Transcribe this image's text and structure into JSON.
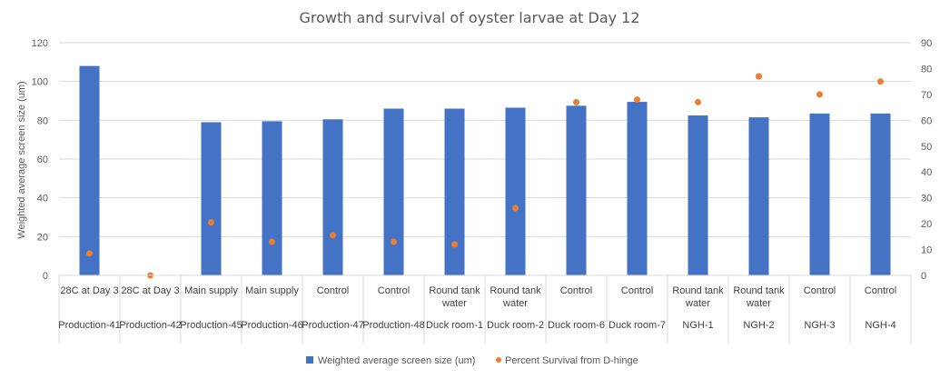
{
  "chart_data": {
    "type": "bar",
    "title": "Growth and survival of oyster larvae at Day 12",
    "ylabel": "Weighted average screen size (um)",
    "y2label": "",
    "ylim": [
      0,
      120
    ],
    "yticks": [
      0,
      20,
      40,
      60,
      80,
      100,
      120
    ],
    "y2lim": [
      0,
      90
    ],
    "y2ticks": [
      0,
      10,
      20,
      30,
      40,
      50,
      60,
      70,
      80,
      90
    ],
    "grid": true,
    "legend_position": "bottom",
    "categories": [
      {
        "top": [
          "28C at Day 3"
        ],
        "bottom": "Production-41"
      },
      {
        "top": [
          "28C at Day 3"
        ],
        "bottom": "Production-42"
      },
      {
        "top": [
          "Main supply"
        ],
        "bottom": "Production-45"
      },
      {
        "top": [
          "Main supply"
        ],
        "bottom": "Production-46"
      },
      {
        "top": [
          "Control"
        ],
        "bottom": "Production-47"
      },
      {
        "top": [
          "Control"
        ],
        "bottom": "Production-48"
      },
      {
        "top": [
          "Round tank",
          "water"
        ],
        "bottom": "Duck room-1"
      },
      {
        "top": [
          "Round tank",
          "water"
        ],
        "bottom": "Duck room-2"
      },
      {
        "top": [
          "Control"
        ],
        "bottom": "Duck room-6"
      },
      {
        "top": [
          "Control"
        ],
        "bottom": "Duck room-7"
      },
      {
        "top": [
          "Round tank",
          "water"
        ],
        "bottom": "NGH-1"
      },
      {
        "top": [
          "Round tank",
          "water"
        ],
        "bottom": "NGH-2"
      },
      {
        "top": [
          "Control"
        ],
        "bottom": "NGH-3"
      },
      {
        "top": [
          "Control"
        ],
        "bottom": "NGH-4"
      }
    ],
    "series": [
      {
        "name": "Weighted average screen size (um)",
        "type": "bar",
        "axis": "left",
        "color": "#4472c4",
        "values": [
          108,
          null,
          79,
          79.5,
          80.5,
          86,
          86,
          86.5,
          87.5,
          89.5,
          82.5,
          81.5,
          83.5,
          83.5
        ]
      },
      {
        "name": "Percent Survival from D-hinge",
        "type": "scatter",
        "axis": "right",
        "color": "#ed7d31",
        "values": [
          8.5,
          0,
          20.5,
          13,
          15.5,
          13,
          12,
          26,
          67,
          68,
          67,
          77,
          70,
          75
        ]
      }
    ]
  }
}
